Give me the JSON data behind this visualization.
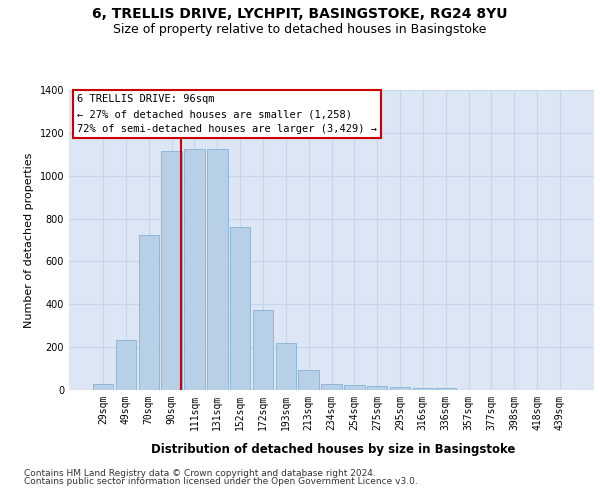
{
  "title1": "6, TRELLIS DRIVE, LYCHPIT, BASINGSTOKE, RG24 8YU",
  "title2": "Size of property relative to detached houses in Basingstoke",
  "xlabel": "Distribution of detached houses by size in Basingstoke",
  "ylabel": "Number of detached properties",
  "categories": [
    "29sqm",
    "49sqm",
    "70sqm",
    "90sqm",
    "111sqm",
    "131sqm",
    "152sqm",
    "172sqm",
    "193sqm",
    "213sqm",
    "234sqm",
    "254sqm",
    "275sqm",
    "295sqm",
    "316sqm",
    "336sqm",
    "357sqm",
    "377sqm",
    "398sqm",
    "418sqm",
    "439sqm"
  ],
  "values": [
    30,
    235,
    725,
    1115,
    1125,
    1125,
    760,
    375,
    220,
    95,
    30,
    25,
    20,
    15,
    10,
    10,
    0,
    0,
    0,
    0,
    0
  ],
  "bar_color": "#b8cfe8",
  "bar_edge_color": "#7aaad0",
  "vline_color": "#cc0000",
  "annotation_line1": "6 TRELLIS DRIVE: 96sqm",
  "annotation_line2": "← 27% of detached houses are smaller (1,258)",
  "annotation_line3": "72% of semi-detached houses are larger (3,429) →",
  "annotation_box_color": "#ffffff",
  "annotation_box_edge": "#cc0000",
  "footer1": "Contains HM Land Registry data © Crown copyright and database right 2024.",
  "footer2": "Contains public sector information licensed under the Open Government Licence v3.0.",
  "ylim": [
    0,
    1400
  ],
  "yticks": [
    0,
    200,
    400,
    600,
    800,
    1000,
    1200,
    1400
  ],
  "grid_color": "#c8d4e8",
  "bg_color": "#dce6f5",
  "title1_fontsize": 10,
  "title2_fontsize": 9,
  "xlabel_fontsize": 8.5,
  "ylabel_fontsize": 8,
  "tick_fontsize": 7,
  "footer_fontsize": 6.5,
  "annot_fontsize": 7.5
}
